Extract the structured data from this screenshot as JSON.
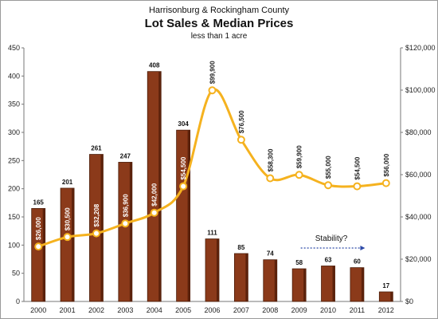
{
  "chart_data": {
    "type": "bar",
    "title": "Lot Sales & Median Prices",
    "subtitle": "Harrisonburg & Rockingham County",
    "note": "less than 1 acre",
    "categories": [
      "2000",
      "2001",
      "2002",
      "2003",
      "2004",
      "2005",
      "2006",
      "2007",
      "2008",
      "2009",
      "2010",
      "2011",
      "2012"
    ],
    "series": [
      {
        "type": "bar",
        "axis": "left",
        "values": [
          165,
          201,
          261,
          247,
          408,
          304,
          111,
          85,
          74,
          58,
          63,
          60,
          17
        ],
        "color": "#8B3A1A"
      },
      {
        "type": "line",
        "axis": "right",
        "values": [
          26000,
          30500,
          32208,
          36900,
          42000,
          54500,
          99900,
          76500,
          58300,
          59900,
          55000,
          54500,
          56000
        ],
        "labels": [
          "$26,000",
          "$30,500",
          "$32,208",
          "$36,900",
          "$42,000",
          "$54,500",
          "$99,900",
          "$76,500",
          "$58,300",
          "$59,900",
          "$55,000",
          "$54,500",
          "$56,000"
        ],
        "color": "#F5B21F"
      }
    ],
    "y_left": {
      "min": 0,
      "max": 450,
      "ticks": [
        "0",
        "50",
        "100",
        "150",
        "200",
        "250",
        "300",
        "350",
        "400",
        "450"
      ]
    },
    "y_right": {
      "min": 0,
      "max": 120000,
      "ticks": [
        "$0",
        "$20,000",
        "$40,000",
        "$60,000",
        "$80,000",
        "$100,000",
        "$120,000"
      ]
    },
    "grid": false,
    "annotation": {
      "text": "Stability?",
      "arrow_from": "2009",
      "arrow_to": "2011"
    }
  }
}
